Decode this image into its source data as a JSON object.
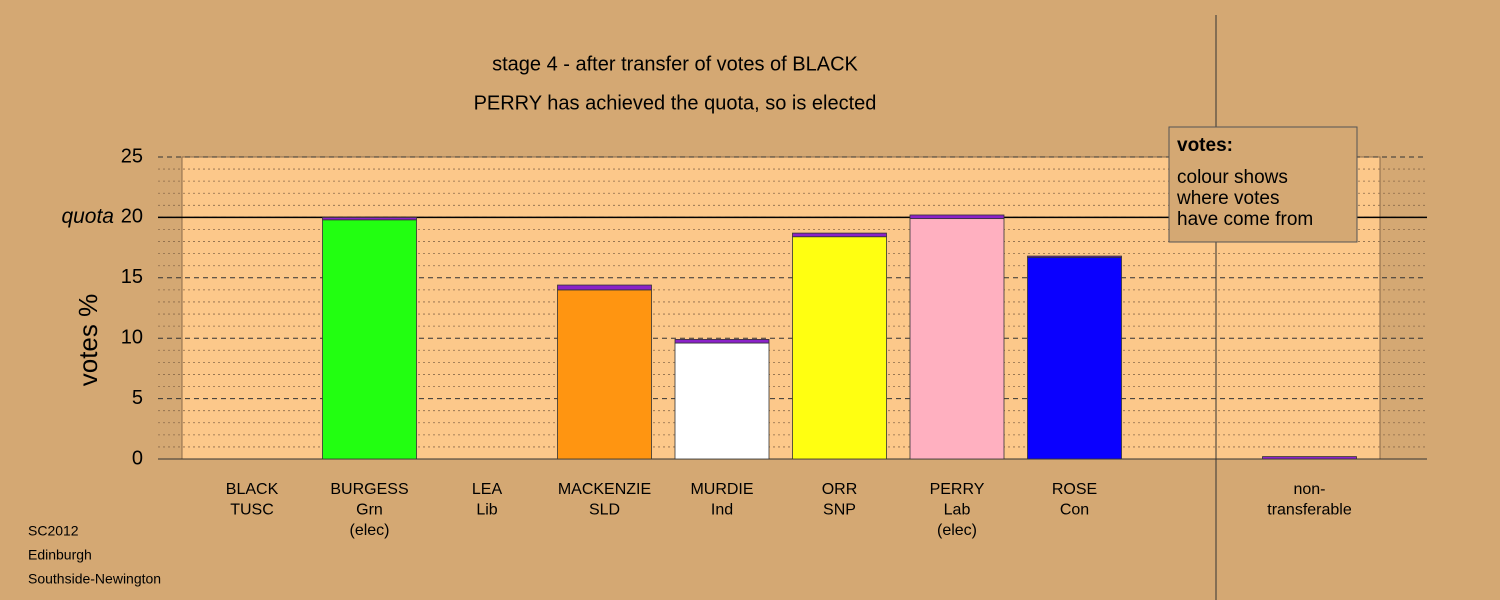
{
  "chart_data": {
    "type": "bar",
    "title": "stage 4 - after transfer of votes of BLACK",
    "subtitle": "PERRY has achieved the quota, so is elected",
    "ylabel": "votes %",
    "categories": [
      [
        "BLACK",
        "TUSC"
      ],
      [
        "BURGESS",
        "Grn",
        "(elec)"
      ],
      [
        "LEA",
        "Lib"
      ],
      [
        "MACKENZIE",
        "SLD"
      ],
      [
        "MURDIE",
        "Ind"
      ],
      [
        "ORR",
        "SNP"
      ],
      [
        "PERRY",
        "Lab",
        "(elec)"
      ],
      [
        "ROSE",
        "Con"
      ],
      null,
      [
        "non-",
        "transferable"
      ]
    ],
    "series": [
      {
        "colors": [
          null,
          "#22ff11",
          null,
          "#ff9511",
          "#ffffff",
          "#ffff11",
          "#ffb0c0",
          "#0a00ff",
          null,
          null
        ],
        "values": [
          0,
          19.8,
          0,
          14.0,
          9.6,
          18.4,
          19.9,
          16.7,
          null,
          0
        ]
      },
      {
        "color": "#8b22c8",
        "values": [
          0,
          0.2,
          0,
          0.4,
          0.3,
          0.3,
          0.3,
          0.1,
          null,
          0.2
        ]
      }
    ],
    "ylim": [
      0,
      25
    ],
    "yticks": [
      0,
      5,
      10,
      15,
      20,
      25
    ],
    "minor_yticks": [
      1,
      2,
      3,
      4,
      6,
      7,
      8,
      9,
      11,
      12,
      13,
      14,
      16,
      17,
      18,
      19,
      21,
      22,
      23,
      24
    ],
    "quota": {
      "value": 20,
      "label": "quota"
    },
    "legend_note": {
      "title": "votes:",
      "lines": [
        "colour shows",
        "where votes",
        "have come from"
      ]
    },
    "footer": [
      "SC2012",
      "Edinburgh",
      "Southside-Newington"
    ]
  }
}
